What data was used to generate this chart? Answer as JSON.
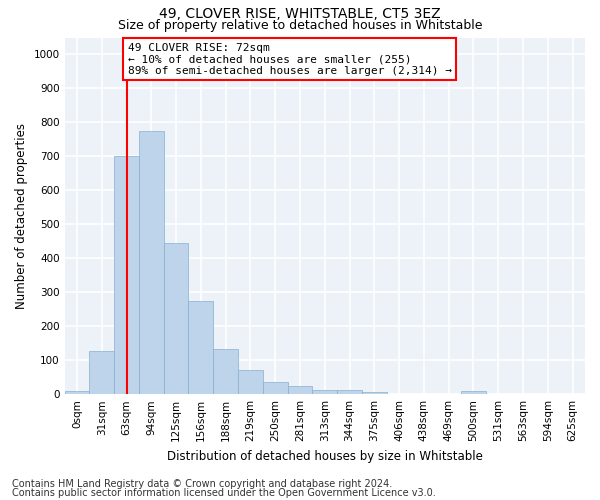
{
  "title": "49, CLOVER RISE, WHITSTABLE, CT5 3EZ",
  "subtitle": "Size of property relative to detached houses in Whitstable",
  "xlabel": "Distribution of detached houses by size in Whitstable",
  "ylabel": "Number of detached properties",
  "categories": [
    "0sqm",
    "31sqm",
    "63sqm",
    "94sqm",
    "125sqm",
    "156sqm",
    "188sqm",
    "219sqm",
    "250sqm",
    "281sqm",
    "313sqm",
    "344sqm",
    "375sqm",
    "406sqm",
    "438sqm",
    "469sqm",
    "500sqm",
    "531sqm",
    "563sqm",
    "594sqm",
    "625sqm"
  ],
  "values": [
    8,
    128,
    700,
    775,
    445,
    275,
    132,
    70,
    37,
    25,
    13,
    12,
    5,
    0,
    0,
    0,
    8,
    0,
    0,
    0,
    0
  ],
  "bar_color": "#bdd4ea",
  "bar_edge_color": "#88afd0",
  "vline_color": "red",
  "vline_x_index": 2.5,
  "annotation_line1": "49 CLOVER RISE: 72sqm",
  "annotation_line2": "← 10% of detached houses are smaller (255)",
  "annotation_line3": "89% of semi-detached houses are larger (2,314) →",
  "annotation_box_color": "red",
  "ylim": [
    0,
    1050
  ],
  "yticks": [
    0,
    100,
    200,
    300,
    400,
    500,
    600,
    700,
    800,
    900,
    1000
  ],
  "footer_line1": "Contains HM Land Registry data © Crown copyright and database right 2024.",
  "footer_line2": "Contains public sector information licensed under the Open Government Licence v3.0.",
  "background_color": "#edf2f9",
  "grid_color": "white",
  "title_fontsize": 10,
  "subtitle_fontsize": 9,
  "axis_label_fontsize": 8.5,
  "tick_fontsize": 7.5,
  "annotation_fontsize": 8,
  "footer_fontsize": 7
}
